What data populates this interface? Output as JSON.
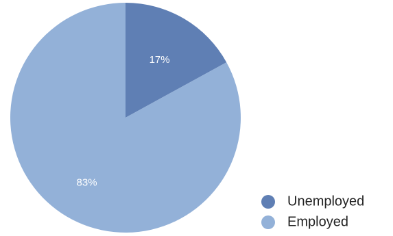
{
  "chart_data": {
    "type": "pie",
    "slices": [
      {
        "label": "Unemployed",
        "value": 17,
        "display": "17%",
        "color": "#5f7fb4"
      },
      {
        "label": "Employed",
        "value": 83,
        "display": "83%",
        "color": "#93b1d8"
      }
    ],
    "legend_position": "bottom-right"
  }
}
